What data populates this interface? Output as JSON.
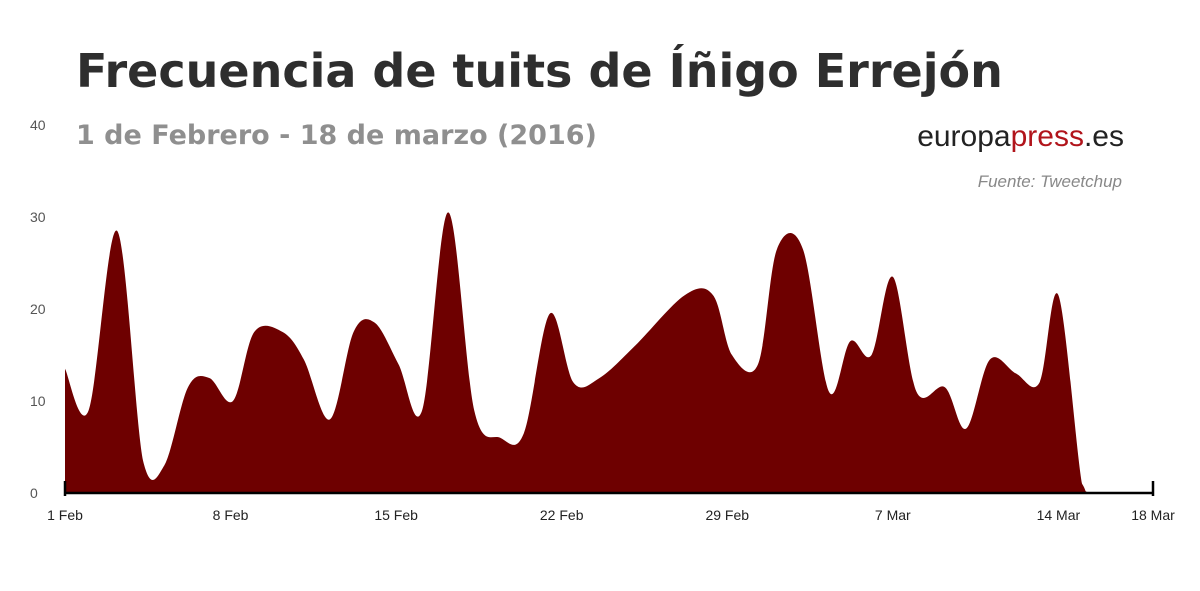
{
  "header": {
    "title": "Frecuencia de tuits de Íñigo Errejón",
    "subtitle": "1 de Febrero - 18 de marzo (2016)",
    "brand_prefix": "europa",
    "brand_highlight": "press",
    "brand_suffix": ".es",
    "source": "Fuente: Tweetchup"
  },
  "colors": {
    "area_fill": "#6e0000",
    "brand_red": "#b1141b",
    "axis": "#000000",
    "tick_label": "#555555"
  },
  "chart_data": {
    "type": "area",
    "title": "Frecuencia de tuits de Íñigo Errejón",
    "subtitle": "1 de Febrero - 18 de marzo (2016)",
    "xlabel": "",
    "ylabel": "",
    "ylim": [
      0,
      40
    ],
    "yticks": [
      0,
      10,
      20,
      30,
      40
    ],
    "xlim": [
      1,
      47
    ],
    "xticks": [
      {
        "label": "1 Feb",
        "day": 1
      },
      {
        "label": "8 Feb",
        "day": 8
      },
      {
        "label": "15 Feb",
        "day": 15
      },
      {
        "label": "22 Feb",
        "day": 22
      },
      {
        "label": "29 Feb",
        "day": 29
      },
      {
        "label": "7 Mar",
        "day": 36
      },
      {
        "label": "14 Mar",
        "day": 43
      },
      {
        "label": "18 Mar",
        "day": 47
      }
    ],
    "grid": false,
    "legend": "none",
    "series": [
      {
        "values": [
          [
            1,
            13.5
          ],
          [
            2,
            9
          ],
          [
            3.2,
            28.5
          ],
          [
            4.3,
            3.5
          ],
          [
            5.2,
            3
          ],
          [
            6.2,
            11.5
          ],
          [
            7.1,
            12.5
          ],
          [
            8.1,
            10
          ],
          [
            9,
            17.5
          ],
          [
            10.2,
            17.5
          ],
          [
            11.1,
            14.5
          ],
          [
            12.2,
            8
          ],
          [
            13.2,
            17.5
          ],
          [
            14.1,
            18.5
          ],
          [
            15.1,
            14
          ],
          [
            16.1,
            9
          ],
          [
            17.2,
            30.5
          ],
          [
            18.3,
            9
          ],
          [
            19.4,
            6
          ],
          [
            20.4,
            6.5
          ],
          [
            21.5,
            19.5
          ],
          [
            22.5,
            12
          ],
          [
            23.6,
            12.5
          ],
          [
            25.1,
            16
          ],
          [
            27.2,
            21.5
          ],
          [
            28.4,
            21.5
          ],
          [
            29.2,
            15
          ],
          [
            30.3,
            14
          ],
          [
            31.1,
            26.5
          ],
          [
            32.2,
            26.5
          ],
          [
            33.3,
            11
          ],
          [
            34.2,
            16.5
          ],
          [
            35.1,
            15
          ],
          [
            36,
            23.5
          ],
          [
            37,
            11
          ],
          [
            38.2,
            11.5
          ],
          [
            39.1,
            7
          ],
          [
            40.1,
            14.5
          ],
          [
            41.2,
            13
          ],
          [
            42.2,
            12
          ],
          [
            43,
            21.5
          ],
          [
            44,
            1
          ],
          [
            44.5,
            0
          ],
          [
            47,
            0
          ]
        ]
      }
    ]
  }
}
